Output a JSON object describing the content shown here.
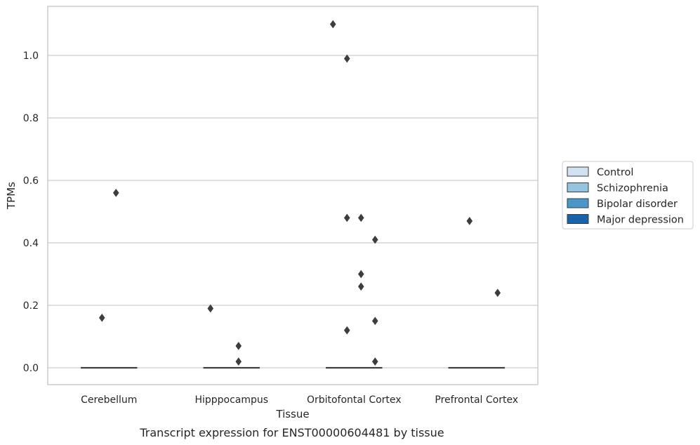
{
  "chart_data": {
    "type": "box",
    "xlabel": "Tissue",
    "ylabel": "TPMs",
    "caption": "Transcript expression for ENST00000604481 by tissue",
    "ylim": [
      -0.054,
      1.165
    ],
    "yticks": [
      "0.0",
      "0.2",
      "0.4",
      "0.6",
      "0.8",
      "1.0"
    ],
    "grid": true,
    "legend_placement": "right",
    "categories": [
      "Cerebellum",
      "Hipppocampus",
      "Orbitofontal Cortex",
      "Prefrontal Cortex"
    ],
    "series": [
      {
        "name": "Control",
        "color": "#d0e1f2"
      },
      {
        "name": "Schizophrenia",
        "color": "#94c4df"
      },
      {
        "name": "Bipolar disorder",
        "color": "#4a98c9"
      },
      {
        "name": "Major depression",
        "color": "#1764ab"
      }
    ],
    "boxes": [
      {
        "category": "Cerebellum",
        "series": "Control",
        "median": 0.0
      },
      {
        "category": "Cerebellum",
        "series": "Schizophrenia",
        "median": 0.0
      },
      {
        "category": "Cerebellum",
        "series": "Bipolar disorder",
        "median": 0.0
      },
      {
        "category": "Cerebellum",
        "series": "Major depression",
        "median": 0.0
      },
      {
        "category": "Hipppocampus",
        "series": "Control",
        "median": 0.0
      },
      {
        "category": "Hipppocampus",
        "series": "Schizophrenia",
        "median": 0.0
      },
      {
        "category": "Hipppocampus",
        "series": "Bipolar disorder",
        "median": 0.0
      },
      {
        "category": "Hipppocampus",
        "series": "Major depression",
        "median": 0.0
      },
      {
        "category": "Orbitofontal Cortex",
        "series": "Control",
        "median": 0.0
      },
      {
        "category": "Orbitofontal Cortex",
        "series": "Schizophrenia",
        "median": 0.0
      },
      {
        "category": "Orbitofontal Cortex",
        "series": "Bipolar disorder",
        "median": 0.0
      },
      {
        "category": "Orbitofontal Cortex",
        "series": "Major depression",
        "median": 0.0
      },
      {
        "category": "Prefrontal Cortex",
        "series": "Control",
        "median": 0.0
      },
      {
        "category": "Prefrontal Cortex",
        "series": "Schizophrenia",
        "median": 0.0
      },
      {
        "category": "Prefrontal Cortex",
        "series": "Bipolar disorder",
        "median": 0.0
      },
      {
        "category": "Prefrontal Cortex",
        "series": "Major depression",
        "median": 0.0
      }
    ],
    "outliers": [
      {
        "category": "Cerebellum",
        "series": "Schizophrenia",
        "value": 0.16
      },
      {
        "category": "Cerebellum",
        "series": "Bipolar disorder",
        "value": 0.56
      },
      {
        "category": "Hipppocampus",
        "series": "Control",
        "value": 0.19
      },
      {
        "category": "Hipppocampus",
        "series": "Bipolar disorder",
        "value": 0.07
      },
      {
        "category": "Hipppocampus",
        "series": "Bipolar disorder",
        "value": 0.02
      },
      {
        "category": "Orbitofontal Cortex",
        "series": "Control",
        "value": 1.1
      },
      {
        "category": "Orbitofontal Cortex",
        "series": "Schizophrenia",
        "value": 0.99
      },
      {
        "category": "Orbitofontal Cortex",
        "series": "Schizophrenia",
        "value": 0.48
      },
      {
        "category": "Orbitofontal Cortex",
        "series": "Schizophrenia",
        "value": 0.12
      },
      {
        "category": "Orbitofontal Cortex",
        "series": "Bipolar disorder",
        "value": 0.48
      },
      {
        "category": "Orbitofontal Cortex",
        "series": "Bipolar disorder",
        "value": 0.3
      },
      {
        "category": "Orbitofontal Cortex",
        "series": "Bipolar disorder",
        "value": 0.26
      },
      {
        "category": "Orbitofontal Cortex",
        "series": "Major depression",
        "value": 0.41
      },
      {
        "category": "Orbitofontal Cortex",
        "series": "Major depression",
        "value": 0.15
      },
      {
        "category": "Orbitofontal Cortex",
        "series": "Major depression",
        "value": 0.02
      },
      {
        "category": "Prefrontal Cortex",
        "series": "Schizophrenia",
        "value": 0.47
      },
      {
        "category": "Prefrontal Cortex",
        "series": "Major depression",
        "value": 0.24
      }
    ]
  }
}
